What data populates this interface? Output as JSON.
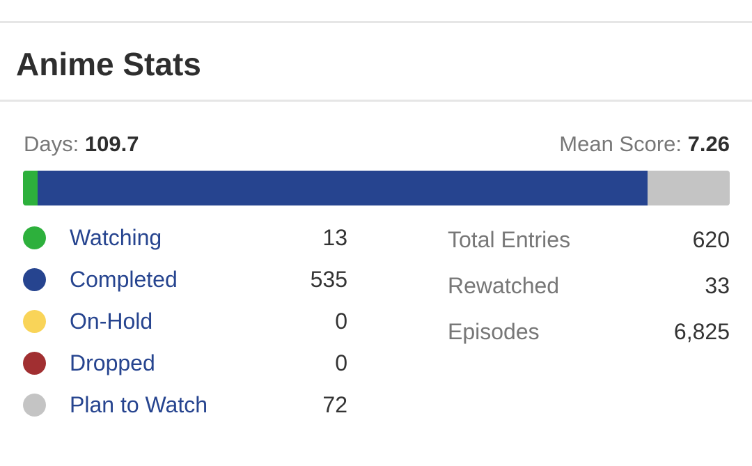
{
  "title": "Anime Stats",
  "summary": {
    "days_label": "Days:",
    "days_value": "109.7",
    "mean_label": "Mean Score:",
    "mean_value": "7.26"
  },
  "progress_bar": {
    "total": 620,
    "segments": [
      {
        "status": "Watching",
        "value": 13,
        "color": "#2db03c"
      },
      {
        "status": "Completed",
        "value": 535,
        "color": "#26448f"
      },
      {
        "status": "On-Hold",
        "value": 0,
        "color": "#f9d458"
      },
      {
        "status": "Dropped",
        "value": 0,
        "color": "#a12f31"
      },
      {
        "status": "Plan to Watch",
        "value": 72,
        "color": "#c4c4c4"
      }
    ]
  },
  "statuses": [
    {
      "label": "Watching",
      "count": "13",
      "color": "#2db03c"
    },
    {
      "label": "Completed",
      "count": "535",
      "color": "#26448f"
    },
    {
      "label": "On-Hold",
      "count": "0",
      "color": "#f9d458"
    },
    {
      "label": "Dropped",
      "count": "0",
      "color": "#a12f31"
    },
    {
      "label": "Plan to Watch",
      "count": "72",
      "color": "#c4c4c4"
    }
  ],
  "totals": [
    {
      "label": "Total Entries",
      "value": "620"
    },
    {
      "label": "Rewatched",
      "value": "33"
    },
    {
      "label": "Episodes",
      "value": "6,825"
    }
  ]
}
